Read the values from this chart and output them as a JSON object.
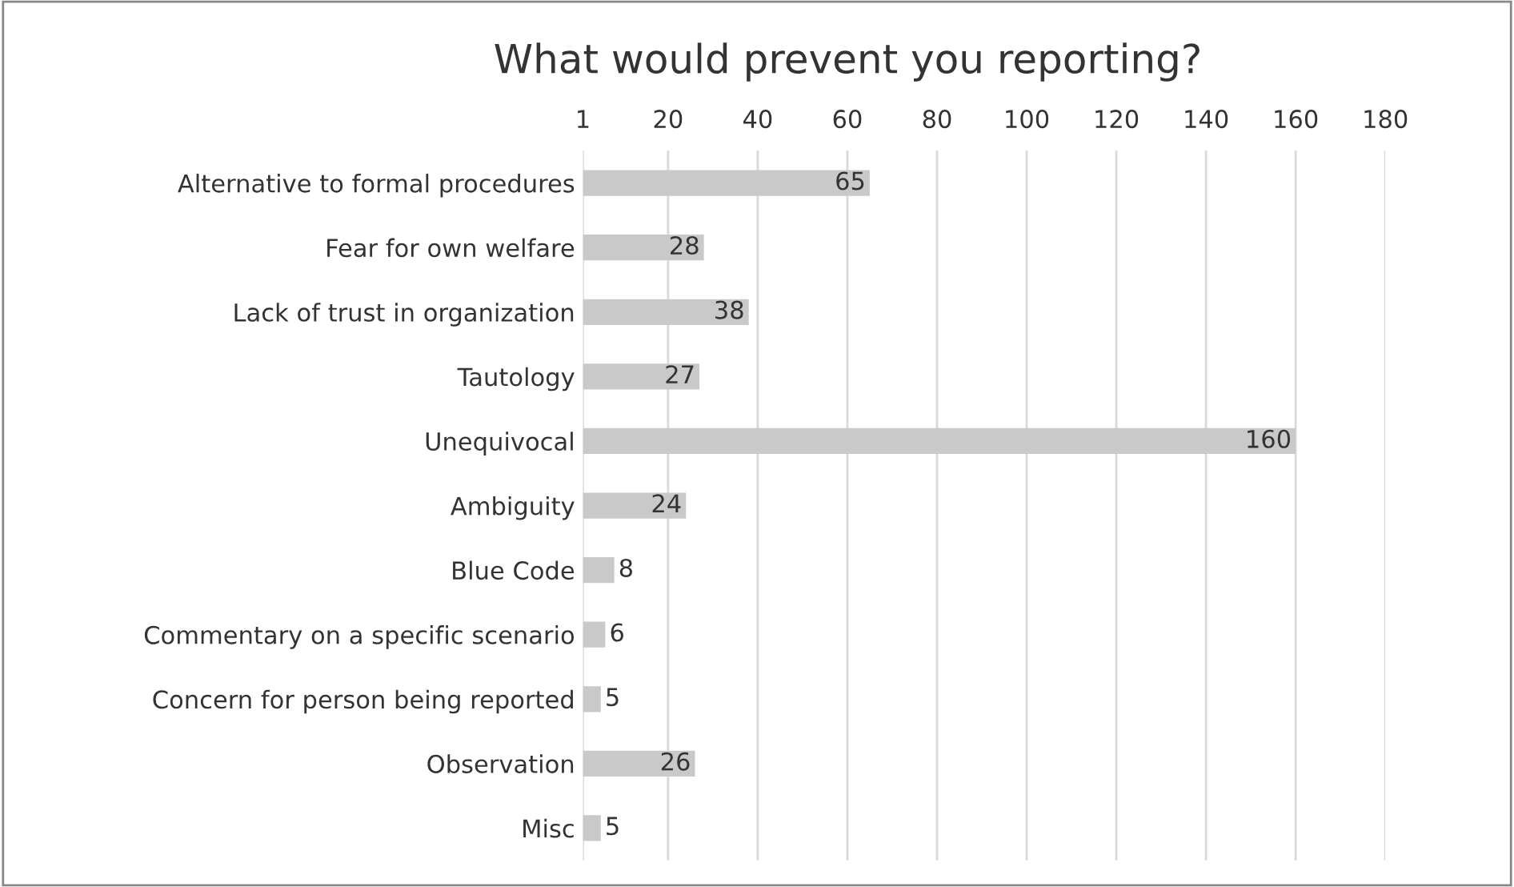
{
  "chart_data": {
    "type": "bar",
    "orientation": "horizontal",
    "title": "What would prevent you reporting?",
    "categories": [
      "Alternative to formal procedures",
      "Fear for own welfare",
      "Lack of trust in organization",
      "Tautology",
      "Unequivocal",
      "Ambiguity",
      "Blue Code",
      "Commentary on a specific scenario",
      "Concern for person being reported",
      "Observation",
      "Misc"
    ],
    "values": [
      65,
      28,
      38,
      27,
      160,
      24,
      8,
      6,
      5,
      26,
      5
    ],
    "color": "#c9c9c9",
    "xlim": [
      1,
      180
    ],
    "xticks": [
      1,
      20,
      40,
      60,
      80,
      100,
      120,
      140,
      160,
      180
    ],
    "grid": "x",
    "data_labels": true
  }
}
